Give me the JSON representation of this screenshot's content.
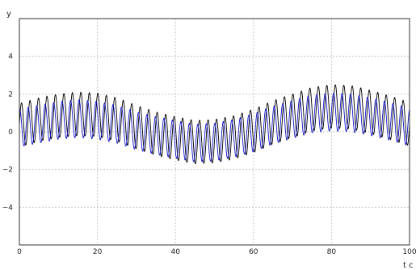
{
  "chart_data": {
    "type": "line",
    "title": "",
    "xlabel": "t c",
    "ylabel": "y",
    "xlim": [
      0,
      100
    ],
    "ylim": [
      -6,
      6
    ],
    "grid": true,
    "x_ticks": [
      0,
      20,
      40,
      60,
      80,
      100
    ],
    "y_ticks": [
      -4,
      -2,
      0,
      2,
      4
    ],
    "x_tick_labels": [
      "0",
      "20",
      "40",
      "60",
      "80",
      "100"
    ],
    "y_tick_labels": [
      "−4",
      "−2",
      "0",
      "2",
      "4"
    ],
    "series": [
      {
        "color": "#000000",
        "baseline": [
          [
            0,
            0.35
          ],
          [
            5,
            0.65
          ],
          [
            10,
            0.85
          ],
          [
            15,
            0.95
          ],
          [
            20,
            0.9
          ],
          [
            25,
            0.65
          ],
          [
            30,
            0.25
          ],
          [
            35,
            -0.1
          ],
          [
            40,
            -0.35
          ],
          [
            45,
            -0.55
          ],
          [
            50,
            -0.5
          ],
          [
            55,
            -0.3
          ],
          [
            60,
            0.05
          ],
          [
            65,
            0.5
          ],
          [
            70,
            0.85
          ],
          [
            75,
            1.2
          ],
          [
            80,
            1.35
          ],
          [
            85,
            1.3
          ],
          [
            90,
            1.05
          ],
          [
            95,
            0.75
          ],
          [
            100,
            0.4
          ]
        ],
        "amplitude": 1.15,
        "cycles": 46,
        "phase": 0
      },
      {
        "color": "#1414c8",
        "baseline": [
          [
            0,
            0.2
          ],
          [
            5,
            0.4
          ],
          [
            10,
            0.6
          ],
          [
            15,
            0.7
          ],
          [
            20,
            0.6
          ],
          [
            25,
            0.4
          ],
          [
            30,
            0.05
          ],
          [
            35,
            -0.2
          ],
          [
            40,
            -0.4
          ],
          [
            45,
            -0.6
          ],
          [
            50,
            -0.55
          ],
          [
            55,
            -0.35
          ],
          [
            60,
            -0.05
          ],
          [
            65,
            0.35
          ],
          [
            70,
            0.65
          ],
          [
            75,
            0.95
          ],
          [
            80,
            1.05
          ],
          [
            85,
            1.0
          ],
          [
            90,
            0.8
          ],
          [
            95,
            0.55
          ],
          [
            100,
            0.25
          ]
        ],
        "amplitude": 1.0,
        "cycles": 46,
        "phase": 1.3
      }
    ]
  }
}
